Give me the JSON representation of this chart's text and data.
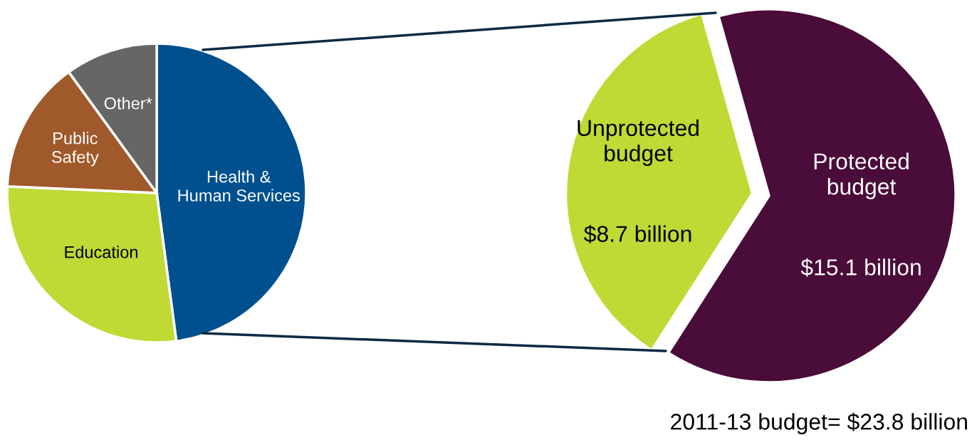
{
  "chart_data": [
    {
      "type": "pie",
      "categories": [
        "Health &\nHuman Services",
        "Education",
        "Public\nSafety",
        "Other*"
      ],
      "values": [
        47.9,
        27.8,
        14.3,
        10.0
      ],
      "colors": [
        "#00508f",
        "#c0d935",
        "#a0592a",
        "#666666"
      ]
    },
    {
      "type": "pie",
      "categories": [
        "Unprotected\nbudget",
        "Protected\nbudget"
      ],
      "values": [
        8.7,
        15.1
      ],
      "value_labels": [
        "$8.7 billion",
        "$15.1 billion"
      ],
      "colors": [
        "#c0d935",
        "#4a0c38"
      ],
      "annotations": [
        "2011-13 budget= $23.8 billion"
      ]
    }
  ]
}
